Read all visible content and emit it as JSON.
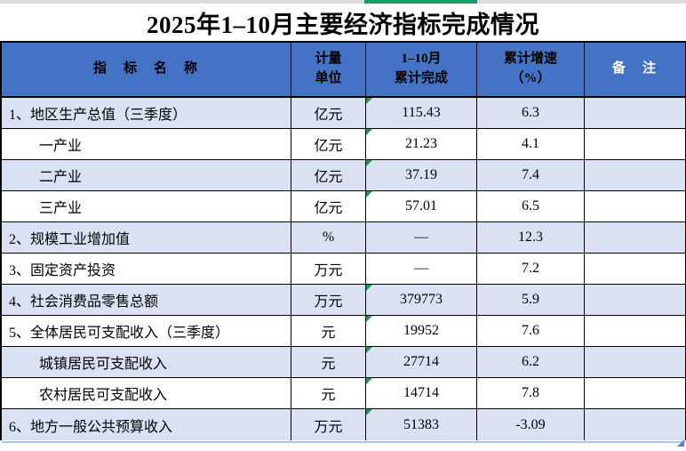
{
  "page": {
    "title": "2025年1–10月主要经济指标完成情况"
  },
  "colors": {
    "header_bg": "#4472C4",
    "row_shaded_bg": "#D9E1F2",
    "marker_green": "#1A9850",
    "column_selection_green": "#12A066",
    "fill_handle_blue": "#5B7FD4",
    "border_black": "#000000"
  },
  "table": {
    "headers": [
      "指　标　名　称",
      "计量\n单位",
      "1–10月\n累计完成",
      "累计增速\n（%）",
      "备　注"
    ],
    "rows": [
      {
        "name": "1、地区生产总值（三季度）",
        "unit": "亿元",
        "value": "115.43",
        "growth": "6.3",
        "note": "",
        "indent": false,
        "marker": true,
        "shaded": true
      },
      {
        "name": "一产业",
        "unit": "亿元",
        "value": "21.23",
        "growth": "4.1",
        "note": "",
        "indent": true,
        "marker": true,
        "shaded": false
      },
      {
        "name": "二产业",
        "unit": "亿元",
        "value": "37.19",
        "growth": "7.4",
        "note": "",
        "indent": true,
        "marker": true,
        "shaded": true
      },
      {
        "name": "三产业",
        "unit": "亿元",
        "value": "57.01",
        "growth": "6.5",
        "note": "",
        "indent": true,
        "marker": true,
        "shaded": false
      },
      {
        "name": "2、规模工业增加值",
        "unit": "%",
        "value": "—",
        "growth": "12.3",
        "note": "",
        "indent": false,
        "marker": false,
        "shaded": true
      },
      {
        "name": "3、固定资产投资",
        "unit": "万元",
        "value": "—",
        "growth": "7.2",
        "note": "",
        "indent": false,
        "marker": false,
        "shaded": false
      },
      {
        "name": "4、社会消费品零售总额",
        "unit": "万元",
        "value": "379773",
        "growth": "5.9",
        "note": "",
        "indent": false,
        "marker": true,
        "shaded": true
      },
      {
        "name": "5、全体居民可支配收入（三季度）",
        "unit": "元",
        "value": "19952",
        "growth": "7.6",
        "note": "",
        "indent": false,
        "marker": true,
        "shaded": false
      },
      {
        "name": "城镇居民可支配收入",
        "unit": "元",
        "value": "27714",
        "growth": "6.2",
        "note": "",
        "indent": true,
        "marker": true,
        "shaded": true
      },
      {
        "name": "农村居民可支配收入",
        "unit": "元",
        "value": "14714",
        "growth": "7.8",
        "note": "",
        "indent": true,
        "marker": true,
        "shaded": false
      },
      {
        "name": "6、地方一般公共预算收入",
        "unit": "万元",
        "value": "51383",
        "growth": "-3.09",
        "note": "",
        "indent": false,
        "marker": true,
        "shaded": true
      }
    ]
  }
}
